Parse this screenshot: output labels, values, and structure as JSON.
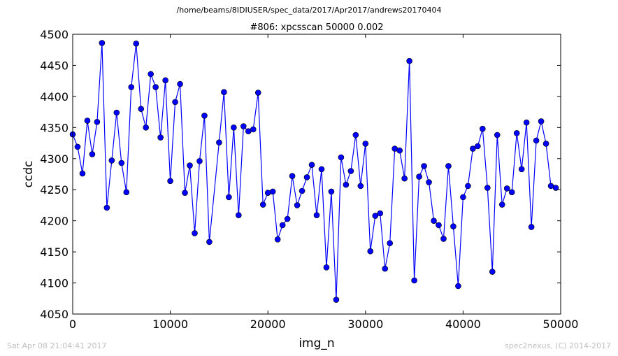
{
  "figure": {
    "suptitle": "/home/beams/8IDIUSER/spec_data/2017/Apr2017/andrews20170404",
    "timestamp": "Sat Apr 08 21:04:41 2017",
    "credit": "spec2nexus, (C) 2014-2017"
  },
  "colors": {
    "line": "#0000ff",
    "marker": "#0000ff",
    "axes": "#000000"
  },
  "chart_data": {
    "type": "line",
    "title": "#806: xpcsscan 50000 0.002",
    "xlabel": "img_n",
    "ylabel": "ccdc",
    "xlim": [
      0,
      50000
    ],
    "ylim": [
      4050,
      4500
    ],
    "xticks": [
      0,
      10000,
      20000,
      30000,
      40000,
      50000
    ],
    "yticks": [
      4050,
      4100,
      4150,
      4200,
      4250,
      4300,
      4350,
      4400,
      4450,
      4500
    ],
    "series": [
      {
        "marker": "circle",
        "x": [
          0,
          500,
          1000,
          1500,
          2000,
          2500,
          3000,
          3500,
          4000,
          4500,
          5000,
          5500,
          6000,
          6500,
          7000,
          7500,
          8000,
          8500,
          9000,
          9500,
          10000,
          10500,
          11000,
          11500,
          12000,
          12500,
          13000,
          13500,
          14000,
          15000,
          15500,
          16000,
          16500,
          17000,
          17500,
          18000,
          18500,
          19000,
          19500,
          20000,
          20500,
          21000,
          21500,
          22000,
          22500,
          23000,
          23500,
          24000,
          24500,
          25000,
          25500,
          26000,
          26500,
          27000,
          27500,
          28000,
          28500,
          29000,
          29500,
          30000,
          30500,
          31000,
          31500,
          32000,
          32500,
          33000,
          33500,
          34000,
          34500,
          35000,
          35500,
          36000,
          36500,
          37000,
          37500,
          38000,
          38500,
          39000,
          39500,
          40000,
          40500,
          41000,
          41500,
          42000,
          42500,
          43000,
          43500,
          44000,
          44500,
          45000,
          45500,
          46000,
          46500,
          47000,
          47500,
          48000,
          48500,
          49000,
          49500
        ],
        "y": [
          4339,
          4319,
          4276,
          4361,
          4307,
          4359,
          4486,
          4221,
          4297,
          4374,
          4293,
          4246,
          4415,
          4485,
          4380,
          4350,
          4436,
          4415,
          4334,
          4426,
          4264,
          4391,
          4420,
          4245,
          4289,
          4180,
          4296,
          4369,
          4166,
          4326,
          4407,
          4238,
          4350,
          4209,
          4352,
          4344,
          4347,
          4406,
          4226,
          4245,
          4247,
          4170,
          4193,
          4203,
          4272,
          4225,
          4248,
          4270,
          4290,
          4209,
          4283,
          4125,
          4247,
          4073,
          4302,
          4258,
          4280,
          4338,
          4256,
          4324,
          4151,
          4208,
          4212,
          4123,
          4164,
          4316,
          4313,
          4268,
          4457,
          4104,
          4271,
          4288,
          4262,
          4200,
          4193,
          4171,
          4288,
          4191,
          4095,
          4238,
          4256,
          4316,
          4320,
          4348,
          4253,
          4118,
          4338,
          4226,
          4252,
          4246,
          4341,
          4283,
          4358,
          4190,
          4329,
          4360,
          4324,
          4256,
          4253
        ]
      }
    ]
  }
}
